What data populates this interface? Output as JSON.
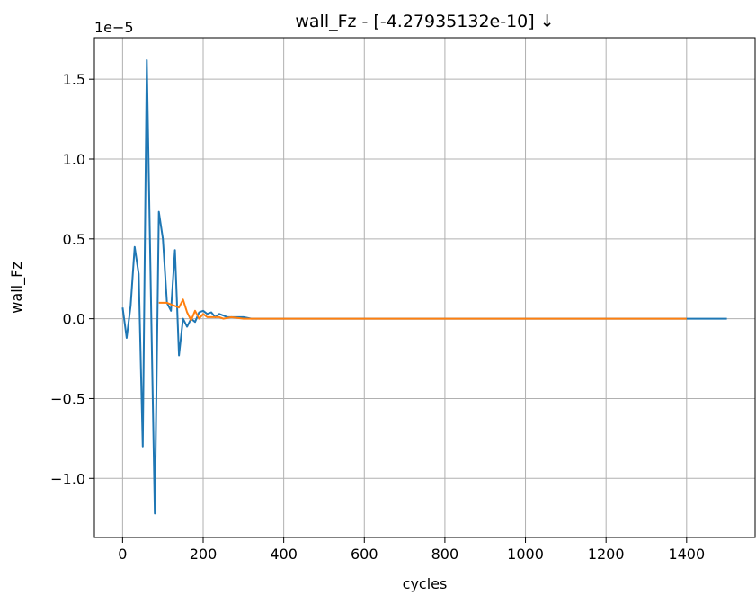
{
  "chart_data": {
    "type": "line",
    "title": "wall_Fz - [-4.27935132e-10]  ↓",
    "xlabel": "cycles",
    "ylabel": "wall_Fz",
    "offset_text": "1e−5",
    "xlim": [
      -70,
      1570
    ],
    "ylim": [
      -1.37,
      1.76
    ],
    "x_ticks": [
      0,
      200,
      400,
      600,
      800,
      1000,
      1200,
      1400
    ],
    "x_tick_labels": [
      "0",
      "200",
      "400",
      "600",
      "800",
      "1000",
      "1200",
      "1400"
    ],
    "y_ticks": [
      -1.0,
      -0.5,
      0.0,
      0.5,
      1.0,
      1.5
    ],
    "y_tick_labels": [
      "−1.0",
      "−0.5",
      "0.0",
      "0.5",
      "1.0",
      "1.5"
    ],
    "grid": true,
    "colors": {
      "series1": "#1f77b4",
      "series2": "#ff7f0e",
      "grid": "#b0b0b0",
      "axes": "#000000"
    },
    "series": [
      {
        "x": [
          0,
          10,
          20,
          30,
          40,
          50,
          60,
          70,
          80,
          90,
          100,
          110,
          120,
          130,
          140,
          150,
          160,
          170,
          180,
          190,
          200,
          210,
          220,
          230,
          240,
          250,
          260,
          280,
          300,
          320,
          350,
          400,
          500,
          600,
          700,
          800,
          900,
          1000,
          1100,
          1200,
          1300,
          1400,
          1500
        ],
        "values": [
          0.07,
          -0.12,
          0.08,
          0.45,
          0.28,
          -0.8,
          1.62,
          0.2,
          -1.22,
          0.67,
          0.5,
          0.1,
          0.05,
          0.43,
          -0.23,
          0.0,
          -0.05,
          0.0,
          -0.02,
          0.04,
          0.05,
          0.03,
          0.04,
          0.01,
          0.03,
          0.02,
          0.01,
          0.01,
          0.01,
          0.0,
          0.0,
          0.0,
          0.0,
          0.0,
          0.0,
          0.0,
          0.0,
          0.0,
          0.0,
          0.0,
          0.0,
          0.0,
          0.0
        ]
      },
      {
        "x": [
          90,
          100,
          110,
          120,
          130,
          140,
          150,
          160,
          170,
          180,
          190,
          200,
          210,
          220,
          230,
          240,
          250,
          270,
          300,
          350,
          400,
          500,
          600,
          700,
          800,
          900,
          1000,
          1100,
          1200,
          1300,
          1400
        ],
        "values": [
          0.1,
          0.1,
          0.1,
          0.09,
          0.08,
          0.07,
          0.12,
          0.04,
          -0.01,
          0.05,
          0.0,
          0.03,
          0.01,
          0.01,
          0.01,
          0.01,
          0.0,
          0.01,
          0.0,
          0.0,
          0.0,
          0.0,
          0.0,
          0.0,
          0.0,
          0.0,
          0.0,
          0.0,
          0.0,
          0.0,
          0.0
        ]
      }
    ]
  }
}
